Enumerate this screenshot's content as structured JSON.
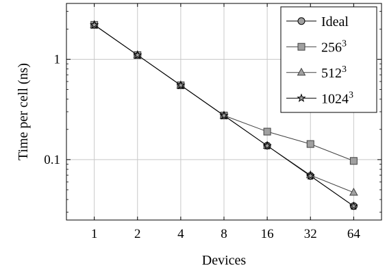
{
  "chart_data": {
    "type": "line",
    "xlabel": "Devices",
    "ylabel": "Time per cell (ns)",
    "x_scale": "log2",
    "y_scale": "log10",
    "categories": [
      1,
      2,
      4,
      8,
      16,
      32,
      64
    ],
    "x_tick_labels": [
      "1",
      "2",
      "4",
      "8",
      "16",
      "32",
      "64"
    ],
    "y_tick_labels": [
      {
        "value": 1,
        "label": "1"
      },
      {
        "value": 0.1,
        "label": "0.1"
      }
    ],
    "xlim": [
      0.64,
      100
    ],
    "ylim": [
      0.025,
      3.6
    ],
    "grid": true,
    "legend_placement": "top-right",
    "series": [
      {
        "name": "Ideal",
        "label_base": "Ideal",
        "label_sup": "",
        "marker": "circle",
        "color": "#000000",
        "marker_fill": "#a0a0a0",
        "values": [
          2.2,
          1.1,
          0.55,
          0.275,
          0.1375,
          0.06875,
          0.034375
        ]
      },
      {
        "name": "256^3",
        "label_base": "256",
        "label_sup": "3",
        "marker": "square",
        "color": "#404040",
        "marker_fill": "#a0a0a0",
        "values": [
          2.2,
          1.1,
          0.55,
          0.275,
          0.19,
          0.143,
          0.097
        ]
      },
      {
        "name": "512^3",
        "label_base": "512",
        "label_sup": "3",
        "marker": "triangle",
        "color": "#404040",
        "marker_fill": "#a0a0a0",
        "values": [
          2.2,
          1.1,
          0.55,
          0.275,
          0.1375,
          0.07,
          0.047
        ]
      },
      {
        "name": "1024^3",
        "label_base": "1024",
        "label_sup": "3",
        "marker": "star",
        "color": "#000000",
        "marker_fill": "#a0a0a0",
        "values": [
          2.2,
          1.1,
          0.55,
          0.275,
          0.1375,
          0.06875,
          0.034375
        ]
      }
    ]
  }
}
